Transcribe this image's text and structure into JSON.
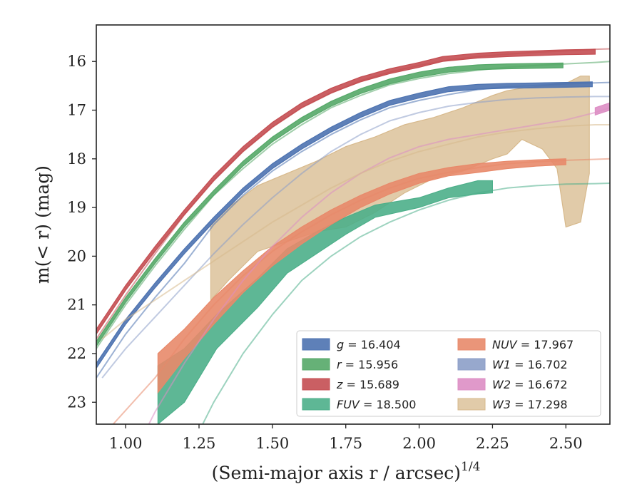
{
  "chart_data": {
    "type": "line",
    "xlabel": "(Semi-major axis r / arcsec)",
    "xlabel_sup": "1/4",
    "ylabel": "m(< r) (mag)",
    "xlim": [
      0.9,
      2.65
    ],
    "ylim": [
      23.45,
      15.25
    ],
    "y_inverted": true,
    "grid": false,
    "legend_placement": "lower-right",
    "xticks": [
      1.0,
      1.25,
      1.5,
      1.75,
      2.0,
      2.25,
      2.5
    ],
    "xtick_labels": [
      "1.00",
      "1.25",
      "1.50",
      "1.75",
      "2.00",
      "2.25",
      "2.50"
    ],
    "yticks": [
      16,
      17,
      18,
      19,
      20,
      21,
      22,
      23
    ],
    "ytick_labels": [
      "16",
      "17",
      "18",
      "19",
      "20",
      "21",
      "22",
      "23"
    ],
    "series": [
      {
        "name": "g = 16.404",
        "symbol": "g",
        "mag": "16.404",
        "color": "#4c72b0",
        "model": [
          [
            0.9,
            22.5
          ],
          [
            1.0,
            21.6
          ],
          [
            1.1,
            20.85
          ],
          [
            1.2,
            20.15
          ],
          [
            1.3,
            19.35
          ],
          [
            1.4,
            18.75
          ],
          [
            1.5,
            18.25
          ],
          [
            1.6,
            17.85
          ],
          [
            1.7,
            17.5
          ],
          [
            1.8,
            17.2
          ],
          [
            1.9,
            16.95
          ],
          [
            2.0,
            16.8
          ],
          [
            2.1,
            16.68
          ],
          [
            2.2,
            16.58
          ],
          [
            2.3,
            16.52
          ],
          [
            2.4,
            16.49
          ],
          [
            2.5,
            16.46
          ],
          [
            2.6,
            16.44
          ],
          [
            2.65,
            16.43
          ]
        ],
        "band": [
          [
            0.9,
            22.3,
            22.2
          ],
          [
            1.0,
            21.4,
            21.3
          ],
          [
            1.1,
            20.65,
            20.55
          ],
          [
            1.2,
            19.95,
            19.85
          ],
          [
            1.3,
            19.3,
            19.2
          ],
          [
            1.4,
            18.7,
            18.6
          ],
          [
            1.5,
            18.2,
            18.1
          ],
          [
            1.6,
            17.8,
            17.7
          ],
          [
            1.7,
            17.45,
            17.35
          ],
          [
            1.8,
            17.15,
            17.05
          ],
          [
            1.9,
            16.9,
            16.8
          ],
          [
            2.0,
            16.75,
            16.65
          ],
          [
            2.1,
            16.62,
            16.52
          ],
          [
            2.2,
            16.57,
            16.47
          ],
          [
            2.3,
            16.55,
            16.45
          ],
          [
            2.4,
            16.54,
            16.44
          ],
          [
            2.5,
            16.53,
            16.43
          ],
          [
            2.59,
            16.52,
            16.42
          ]
        ]
      },
      {
        "name": "r = 15.956",
        "symbol": "r",
        "mag": "15.956",
        "color": "#55a868",
        "model": [
          [
            0.9,
            21.9
          ],
          [
            1.0,
            21.0
          ],
          [
            1.1,
            20.2
          ],
          [
            1.2,
            19.45
          ],
          [
            1.3,
            18.75
          ],
          [
            1.4,
            18.2
          ],
          [
            1.5,
            17.7
          ],
          [
            1.6,
            17.3
          ],
          [
            1.7,
            16.95
          ],
          [
            1.8,
            16.7
          ],
          [
            1.9,
            16.48
          ],
          [
            2.0,
            16.35
          ],
          [
            2.1,
            16.25
          ],
          [
            2.2,
            16.18
          ],
          [
            2.3,
            16.12
          ],
          [
            2.4,
            16.08
          ],
          [
            2.5,
            16.05
          ],
          [
            2.6,
            16.02
          ],
          [
            2.65,
            16.0
          ]
        ],
        "band": [
          [
            0.9,
            21.85,
            21.75
          ],
          [
            1.0,
            20.95,
            20.85
          ],
          [
            1.1,
            20.15,
            20.05
          ],
          [
            1.2,
            19.4,
            19.3
          ],
          [
            1.3,
            18.75,
            18.65
          ],
          [
            1.4,
            18.15,
            18.05
          ],
          [
            1.5,
            17.65,
            17.55
          ],
          [
            1.6,
            17.25,
            17.15
          ],
          [
            1.7,
            16.92,
            16.82
          ],
          [
            1.8,
            16.66,
            16.56
          ],
          [
            1.9,
            16.46,
            16.36
          ],
          [
            2.0,
            16.32,
            16.22
          ],
          [
            2.1,
            16.22,
            16.12
          ],
          [
            2.2,
            16.17,
            16.07
          ],
          [
            2.3,
            16.15,
            16.05
          ],
          [
            2.4,
            16.14,
            16.04
          ],
          [
            2.49,
            16.13,
            16.03
          ]
        ]
      },
      {
        "name": "z = 15.689",
        "symbol": "z",
        "mag": "15.689",
        "color": "#c44e52",
        "model": [
          [
            0.9,
            21.7
          ],
          [
            1.0,
            20.8
          ],
          [
            1.1,
            19.95
          ],
          [
            1.2,
            19.15
          ],
          [
            1.3,
            18.45
          ],
          [
            1.4,
            17.85
          ],
          [
            1.5,
            17.35
          ],
          [
            1.6,
            16.95
          ],
          [
            1.7,
            16.65
          ],
          [
            1.8,
            16.4
          ],
          [
            1.9,
            16.22
          ],
          [
            2.0,
            16.08
          ],
          [
            2.1,
            15.97
          ],
          [
            2.2,
            15.9
          ],
          [
            2.3,
            15.85
          ],
          [
            2.4,
            15.81
          ],
          [
            2.5,
            15.78
          ],
          [
            2.6,
            15.75
          ],
          [
            2.65,
            15.74
          ]
        ],
        "band": [
          [
            0.9,
            21.6,
            21.5
          ],
          [
            1.0,
            20.7,
            20.6
          ],
          [
            1.1,
            19.9,
            19.8
          ],
          [
            1.2,
            19.15,
            19.05
          ],
          [
            1.3,
            18.45,
            18.35
          ],
          [
            1.4,
            17.85,
            17.75
          ],
          [
            1.5,
            17.35,
            17.25
          ],
          [
            1.6,
            16.95,
            16.85
          ],
          [
            1.7,
            16.65,
            16.55
          ],
          [
            1.8,
            16.42,
            16.32
          ],
          [
            1.9,
            16.25,
            16.15
          ],
          [
            2.0,
            16.12,
            16.02
          ],
          [
            2.08,
            16.0,
            15.9
          ],
          [
            2.2,
            15.93,
            15.83
          ],
          [
            2.3,
            15.9,
            15.8
          ],
          [
            2.4,
            15.88,
            15.78
          ],
          [
            2.5,
            15.86,
            15.76
          ],
          [
            2.6,
            15.85,
            15.75
          ]
        ]
      },
      {
        "name": "FUV = 18.500",
        "symbol": "FUV",
        "mag": "18.500",
        "color": "#4daf8a",
        "model": [
          [
            1.2,
            24.2
          ],
          [
            1.3,
            23.0
          ],
          [
            1.4,
            22.0
          ],
          [
            1.5,
            21.2
          ],
          [
            1.6,
            20.5
          ],
          [
            1.7,
            20.0
          ],
          [
            1.8,
            19.6
          ],
          [
            1.9,
            19.3
          ],
          [
            2.0,
            19.05
          ],
          [
            2.1,
            18.85
          ],
          [
            2.2,
            18.7
          ],
          [
            2.3,
            18.6
          ],
          [
            2.4,
            18.55
          ],
          [
            2.5,
            18.52
          ],
          [
            2.6,
            18.51
          ],
          [
            2.65,
            18.5
          ]
        ],
        "band": [
          [
            1.11,
            23.45,
            22.25
          ],
          [
            1.2,
            23.0,
            21.9
          ],
          [
            1.31,
            21.9,
            21.2
          ],
          [
            1.45,
            21.05,
            20.45
          ],
          [
            1.55,
            20.35,
            19.85
          ],
          [
            1.65,
            19.95,
            19.5
          ],
          [
            1.75,
            19.55,
            19.2
          ],
          [
            1.85,
            19.2,
            18.95
          ],
          [
            2.0,
            19.0,
            18.8
          ],
          [
            2.1,
            18.8,
            18.6
          ],
          [
            2.2,
            18.72,
            18.45
          ],
          [
            2.25,
            18.7,
            18.45
          ]
        ]
      },
      {
        "name": "NUV = 17.967",
        "symbol": "NUV",
        "mag": "17.967",
        "color": "#e8896a",
        "model": [
          [
            0.95,
            23.5
          ],
          [
            1.1,
            22.5
          ],
          [
            1.2,
            21.7
          ],
          [
            1.3,
            21.0
          ],
          [
            1.4,
            20.4
          ],
          [
            1.5,
            19.9
          ],
          [
            1.6,
            19.5
          ],
          [
            1.7,
            19.15
          ],
          [
            1.8,
            18.85
          ],
          [
            1.9,
            18.6
          ],
          [
            2.0,
            18.4
          ],
          [
            2.1,
            18.28
          ],
          [
            2.2,
            18.18
          ],
          [
            2.3,
            18.1
          ],
          [
            2.4,
            18.06
          ],
          [
            2.5,
            18.03
          ],
          [
            2.6,
            18.01
          ],
          [
            2.65,
            18.0
          ]
        ],
        "band": [
          [
            1.11,
            22.8,
            22.0
          ],
          [
            1.2,
            22.1,
            21.5
          ],
          [
            1.3,
            21.4,
            20.85
          ],
          [
            1.4,
            20.75,
            20.3
          ],
          [
            1.5,
            20.2,
            19.8
          ],
          [
            1.6,
            19.75,
            19.4
          ],
          [
            1.7,
            19.35,
            19.05
          ],
          [
            1.8,
            19.0,
            18.75
          ],
          [
            1.9,
            18.72,
            18.5
          ],
          [
            2.0,
            18.5,
            18.3
          ],
          [
            2.1,
            18.35,
            18.18
          ],
          [
            2.2,
            18.28,
            18.1
          ],
          [
            2.3,
            18.2,
            18.05
          ],
          [
            2.4,
            18.15,
            18.02
          ],
          [
            2.5,
            18.12,
            18.0
          ]
        ]
      },
      {
        "name": "W1 = 16.702",
        "symbol": "W1",
        "mag": "16.702",
        "color": "#8c9ec8",
        "model": [
          [
            0.92,
            22.5
          ],
          [
            1.0,
            21.9
          ],
          [
            1.1,
            21.25
          ],
          [
            1.2,
            20.6
          ],
          [
            1.3,
            19.95
          ],
          [
            1.4,
            19.35
          ],
          [
            1.5,
            18.8
          ],
          [
            1.6,
            18.3
          ],
          [
            1.7,
            17.85
          ],
          [
            1.8,
            17.5
          ],
          [
            1.9,
            17.22
          ],
          [
            2.0,
            17.05
          ],
          [
            2.1,
            16.92
          ],
          [
            2.2,
            16.84
          ],
          [
            2.3,
            16.78
          ],
          [
            2.4,
            16.75
          ],
          [
            2.5,
            16.73
          ],
          [
            2.6,
            16.72
          ],
          [
            2.65,
            16.72
          ]
        ],
        "band": []
      },
      {
        "name": "W2 = 16.672",
        "symbol": "W2",
        "mag": "16.672",
        "color": "#dd8ec4",
        "model": [
          [
            1.05,
            23.8
          ],
          [
            1.1,
            23.2
          ],
          [
            1.2,
            22.2
          ],
          [
            1.3,
            21.3
          ],
          [
            1.4,
            20.5
          ],
          [
            1.5,
            19.8
          ],
          [
            1.6,
            19.2
          ],
          [
            1.7,
            18.7
          ],
          [
            1.8,
            18.3
          ],
          [
            1.9,
            17.98
          ],
          [
            2.0,
            17.75
          ],
          [
            2.1,
            17.6
          ],
          [
            2.2,
            17.5
          ],
          [
            2.3,
            17.4
          ],
          [
            2.4,
            17.3
          ],
          [
            2.5,
            17.2
          ],
          [
            2.6,
            17.05
          ],
          [
            2.65,
            16.95
          ]
        ],
        "band": [
          [
            2.6,
            17.1,
            16.95
          ],
          [
            2.65,
            17.0,
            16.85
          ]
        ]
      },
      {
        "name": "W3 = 17.298",
        "symbol": "W3",
        "mag": "17.298",
        "color": "#d7b98c",
        "model": [
          [
            0.92,
            21.7
          ],
          [
            1.0,
            21.3
          ],
          [
            1.1,
            20.9
          ],
          [
            1.2,
            20.5
          ],
          [
            1.3,
            20.1
          ],
          [
            1.4,
            19.7
          ],
          [
            1.5,
            19.3
          ],
          [
            1.6,
            18.95
          ],
          [
            1.7,
            18.6
          ],
          [
            1.8,
            18.3
          ],
          [
            1.9,
            18.05
          ],
          [
            2.0,
            17.85
          ],
          [
            2.1,
            17.7
          ],
          [
            2.2,
            17.55
          ],
          [
            2.3,
            17.45
          ],
          [
            2.4,
            17.38
          ],
          [
            2.5,
            17.33
          ],
          [
            2.6,
            17.3
          ],
          [
            2.65,
            17.3
          ]
        ],
        "band": [
          [
            1.29,
            20.9,
            19.35
          ],
          [
            1.35,
            20.5,
            19.0
          ],
          [
            1.45,
            19.9,
            18.55
          ],
          [
            1.55,
            19.7,
            18.3
          ],
          [
            1.65,
            19.5,
            18.05
          ],
          [
            1.75,
            19.4,
            17.75
          ],
          [
            1.85,
            19.1,
            17.55
          ],
          [
            1.95,
            18.7,
            17.3
          ],
          [
            2.05,
            18.4,
            17.15
          ],
          [
            2.15,
            18.25,
            16.95
          ],
          [
            2.25,
            18.0,
            16.7
          ],
          [
            2.3,
            17.9,
            16.6
          ],
          [
            2.35,
            17.6,
            16.55
          ],
          [
            2.42,
            17.8,
            16.5
          ],
          [
            2.47,
            18.2,
            16.45
          ],
          [
            2.5,
            19.4,
            16.45
          ],
          [
            2.55,
            19.3,
            16.3
          ],
          [
            2.58,
            18.3,
            16.3
          ]
        ]
      }
    ]
  }
}
